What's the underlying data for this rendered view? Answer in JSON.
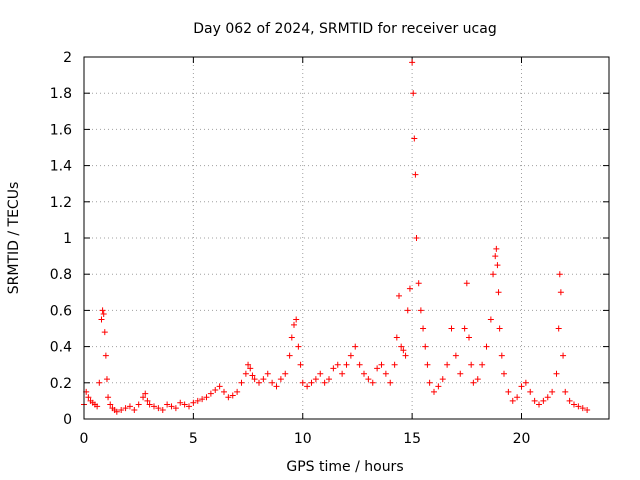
{
  "chart_data": {
    "type": "scatter",
    "title": "Day 062 of 2024, SRMTID for receiver ucag",
    "xlabel": "GPS time / hours",
    "ylabel": "SRMTID / TECUs",
    "xlim": [
      0,
      24
    ],
    "ylim": [
      0,
      2
    ],
    "xticks": [
      0,
      5,
      10,
      15,
      20
    ],
    "yticks": [
      0,
      0.2,
      0.4,
      0.6,
      0.8,
      1,
      1.2,
      1.4,
      1.6,
      1.8,
      2
    ],
    "xtick_labels": [
      "0",
      "5",
      "10",
      "15",
      "20"
    ],
    "ytick_labels": [
      "0",
      "0.2",
      "0.4",
      "0.6",
      "0.8",
      "1",
      "1.2",
      "1.4",
      "1.6",
      "1.8",
      "2"
    ],
    "grid": true,
    "marker": "+",
    "color": "#ff0000",
    "series": [
      {
        "name": "SRMTID",
        "x": [
          0.0,
          0.1,
          0.2,
          0.3,
          0.4,
          0.5,
          0.6,
          0.7,
          0.8,
          0.85,
          0.9,
          0.95,
          1.0,
          1.05,
          1.1,
          1.2,
          1.3,
          1.4,
          1.5,
          1.7,
          1.9,
          2.1,
          2.3,
          2.5,
          2.7,
          2.8,
          2.9,
          3.0,
          3.2,
          3.4,
          3.6,
          3.8,
          4.0,
          4.2,
          4.4,
          4.6,
          4.8,
          5.0,
          5.2,
          5.4,
          5.6,
          5.8,
          6.0,
          6.2,
          6.4,
          6.6,
          6.8,
          7.0,
          7.2,
          7.4,
          7.5,
          7.6,
          7.7,
          7.8,
          8.0,
          8.2,
          8.4,
          8.6,
          8.8,
          9.0,
          9.2,
          9.4,
          9.5,
          9.6,
          9.7,
          9.8,
          9.9,
          10.0,
          10.2,
          10.4,
          10.6,
          10.8,
          11.0,
          11.2,
          11.4,
          11.6,
          11.8,
          12.0,
          12.2,
          12.4,
          12.6,
          12.8,
          13.0,
          13.2,
          13.4,
          13.6,
          13.8,
          14.0,
          14.2,
          14.3,
          14.4,
          14.5,
          14.6,
          14.7,
          14.8,
          14.9,
          15.0,
          15.05,
          15.1,
          15.15,
          15.2,
          15.3,
          15.4,
          15.5,
          15.6,
          15.7,
          15.8,
          16.0,
          16.2,
          16.4,
          16.6,
          16.8,
          17.0,
          17.2,
          17.4,
          17.5,
          17.6,
          17.7,
          17.8,
          18.0,
          18.2,
          18.4,
          18.6,
          18.7,
          18.8,
          18.85,
          18.9,
          18.95,
          19.0,
          19.1,
          19.2,
          19.4,
          19.6,
          19.8,
          20.0,
          20.2,
          20.4,
          20.6,
          20.8,
          21.0,
          21.2,
          21.4,
          21.6,
          21.7,
          21.75,
          21.8,
          21.9,
          22.0,
          22.2,
          22.4,
          22.6,
          22.8,
          23.0
        ],
        "y": [
          0.08,
          0.15,
          0.12,
          0.1,
          0.09,
          0.08,
          0.07,
          0.2,
          0.55,
          0.6,
          0.58,
          0.48,
          0.35,
          0.22,
          0.12,
          0.08,
          0.06,
          0.05,
          0.04,
          0.05,
          0.06,
          0.07,
          0.05,
          0.08,
          0.12,
          0.14,
          0.1,
          0.08,
          0.07,
          0.06,
          0.05,
          0.08,
          0.07,
          0.06,
          0.09,
          0.08,
          0.07,
          0.09,
          0.1,
          0.11,
          0.12,
          0.14,
          0.16,
          0.18,
          0.15,
          0.12,
          0.13,
          0.15,
          0.2,
          0.25,
          0.3,
          0.28,
          0.24,
          0.22,
          0.2,
          0.22,
          0.25,
          0.2,
          0.18,
          0.22,
          0.25,
          0.35,
          0.45,
          0.52,
          0.55,
          0.4,
          0.3,
          0.2,
          0.18,
          0.2,
          0.22,
          0.25,
          0.2,
          0.22,
          0.28,
          0.3,
          0.25,
          0.3,
          0.35,
          0.4,
          0.3,
          0.25,
          0.22,
          0.2,
          0.28,
          0.3,
          0.25,
          0.2,
          0.3,
          0.45,
          0.68,
          0.4,
          0.38,
          0.35,
          0.6,
          0.72,
          1.97,
          1.8,
          1.55,
          1.35,
          1.0,
          0.75,
          0.6,
          0.5,
          0.4,
          0.3,
          0.2,
          0.15,
          0.18,
          0.22,
          0.3,
          0.5,
          0.35,
          0.25,
          0.5,
          0.75,
          0.45,
          0.3,
          0.2,
          0.22,
          0.3,
          0.4,
          0.55,
          0.8,
          0.9,
          0.94,
          0.85,
          0.7,
          0.5,
          0.35,
          0.25,
          0.15,
          0.1,
          0.12,
          0.18,
          0.2,
          0.15,
          0.1,
          0.08,
          0.1,
          0.12,
          0.15,
          0.25,
          0.5,
          0.8,
          0.7,
          0.35,
          0.15,
          0.1,
          0.08,
          0.07,
          0.06,
          0.05
        ]
      }
    ]
  }
}
